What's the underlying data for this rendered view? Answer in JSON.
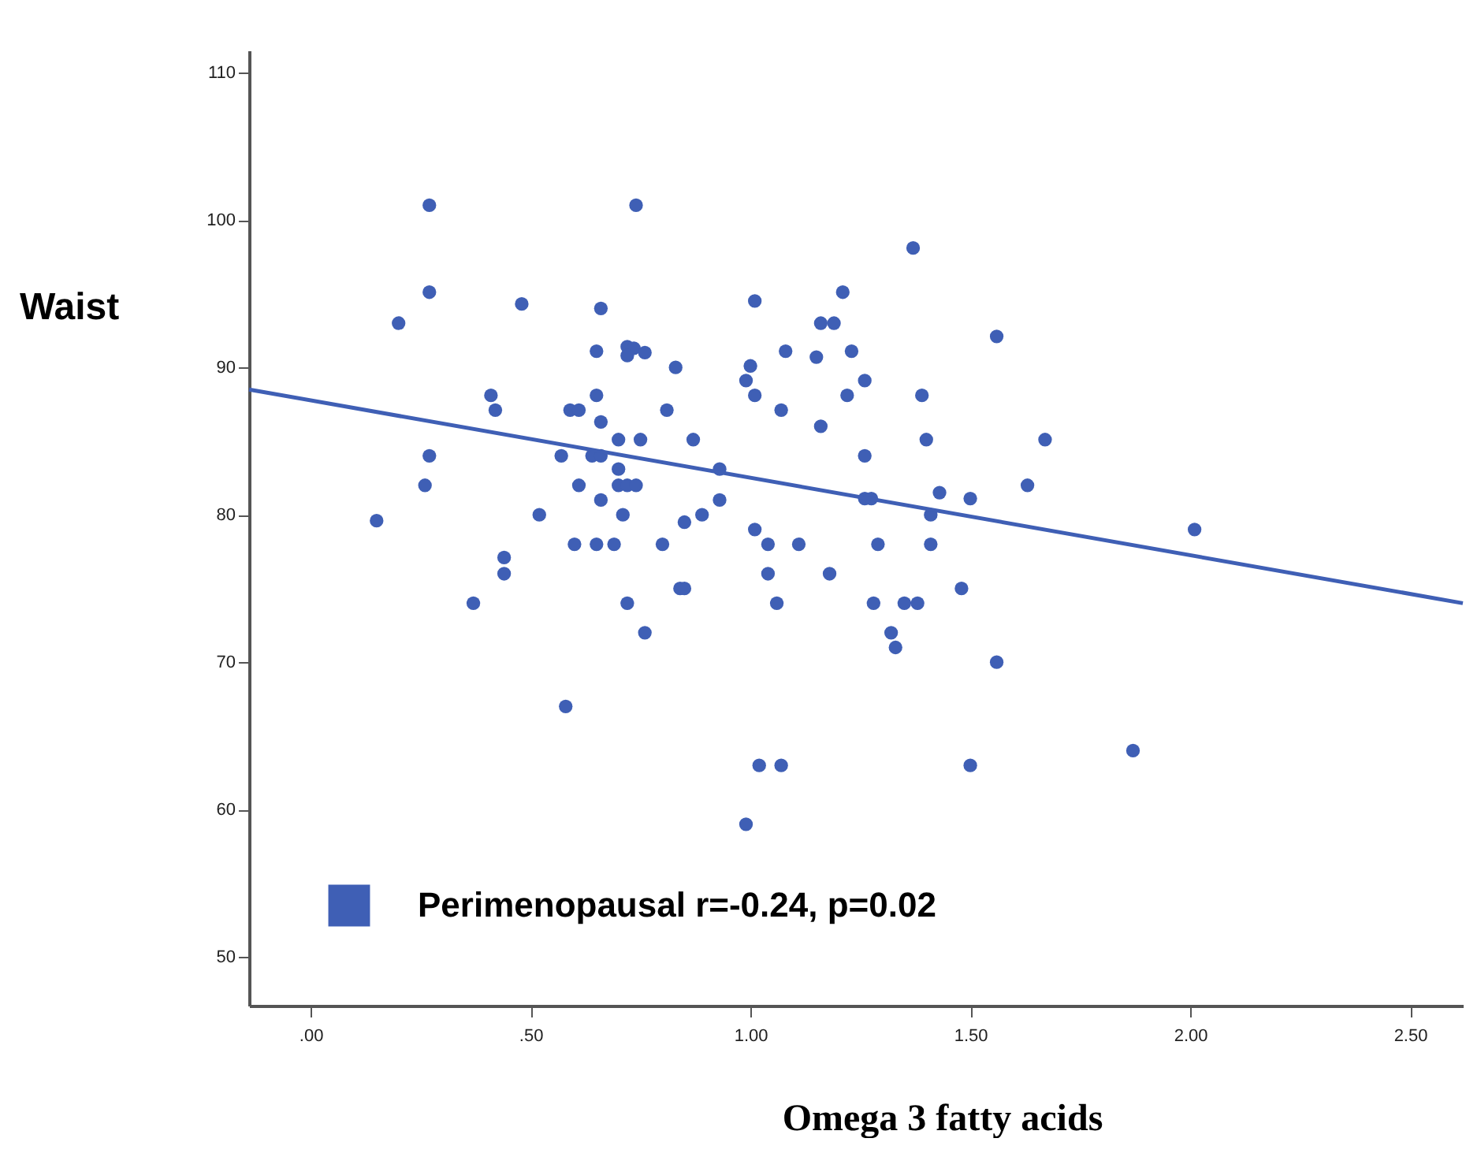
{
  "chart_data": {
    "type": "scatter",
    "xlabel": "Omega 3 fatty acids",
    "ylabel": "Waist",
    "xlim": [
      -0.14,
      2.62
    ],
    "ylim": [
      46.7,
      111.5
    ],
    "xticks": [
      {
        "value": 0,
        "label": ".00"
      },
      {
        "value": 0.5,
        "label": ".50"
      },
      {
        "value": 1,
        "label": "1.00"
      },
      {
        "value": 1.5,
        "label": "1.50"
      },
      {
        "value": 2,
        "label": "2.00"
      },
      {
        "value": 2.5,
        "label": "2.50"
      }
    ],
    "yticks": [
      50,
      60,
      70,
      80,
      90,
      100,
      110
    ],
    "grid": false,
    "legend": "bottom left",
    "series": [
      {
        "name": "Perimenopausal r=-0.24, p=0.02",
        "color": "#3f5fb5",
        "marker": "circle",
        "x": [
          0.27,
          0.74,
          0.27,
          0.2,
          0.48,
          0.66,
          0.65,
          0.72,
          0.735,
          0.72,
          0.76,
          0.83,
          0.41,
          0.42,
          0.59,
          0.61,
          0.65,
          0.66,
          0.81,
          0.7,
          0.75,
          0.87,
          0.27,
          0.57,
          0.64,
          0.66,
          0.7,
          0.93,
          0.26,
          0.61,
          0.7,
          0.72,
          0.74,
          0.66,
          0.93,
          0.15,
          0.52,
          0.71,
          0.85,
          0.89,
          0.6,
          0.65,
          0.69,
          0.8,
          0.44,
          0.44,
          0.84,
          0.85,
          0.37,
          0.72,
          0.76,
          0.58,
          1.37,
          1.01,
          1.21,
          1.16,
          1.19,
          1.56,
          1.08,
          1.15,
          1.23,
          1.0,
          0.99,
          1.26,
          1.01,
          1.22,
          1.39,
          1.07,
          1.16,
          1.4,
          1.67,
          1.26,
          1.63,
          1.43,
          1.5,
          1.26,
          1.275,
          1.41,
          1.01,
          1.04,
          1.11,
          1.29,
          1.41,
          1.04,
          1.18,
          1.48,
          1.06,
          1.28,
          1.35,
          1.38,
          1.32,
          1.33,
          1.56,
          2.01,
          1.87,
          1.5,
          1.02,
          1.07,
          0.99
        ],
        "values": [
          101,
          101,
          95.1,
          93.0,
          94.3,
          94.0,
          91.1,
          91.4,
          91.3,
          90.8,
          91.0,
          90.0,
          88.1,
          87.1,
          87.1,
          87.1,
          88.1,
          86.3,
          87.1,
          85.1,
          85.1,
          85.1,
          84.0,
          84.0,
          84.0,
          84.0,
          83.1,
          83.1,
          82.0,
          82.0,
          82.0,
          82.0,
          82.0,
          81.0,
          81.0,
          79.6,
          80.0,
          80.0,
          79.5,
          80.0,
          78.0,
          78.0,
          78.0,
          78.0,
          77.1,
          76.0,
          75.0,
          75.0,
          74.0,
          74.0,
          72.0,
          67.0,
          98.1,
          94.5,
          95.1,
          93.0,
          93.0,
          92.1,
          91.1,
          90.7,
          91.1,
          90.1,
          89.1,
          89.1,
          88.1,
          88.1,
          88.1,
          87.1,
          86.0,
          85.1,
          85.1,
          84.0,
          82.0,
          81.5,
          81.1,
          81.1,
          81.1,
          80.0,
          79.0,
          78.0,
          78.0,
          78.0,
          78.0,
          76.0,
          76.0,
          75.0,
          74.0,
          74.0,
          74.0,
          74.0,
          72.0,
          71.0,
          70.0,
          79.0,
          64.0,
          63.0,
          63.0,
          63.0,
          59.0
        ]
      },
      {
        "color": "#3f5fb5",
        "type": "line",
        "x": [
          -0.14,
          2.62
        ],
        "values": [
          88.5,
          74.0
        ]
      }
    ]
  }
}
